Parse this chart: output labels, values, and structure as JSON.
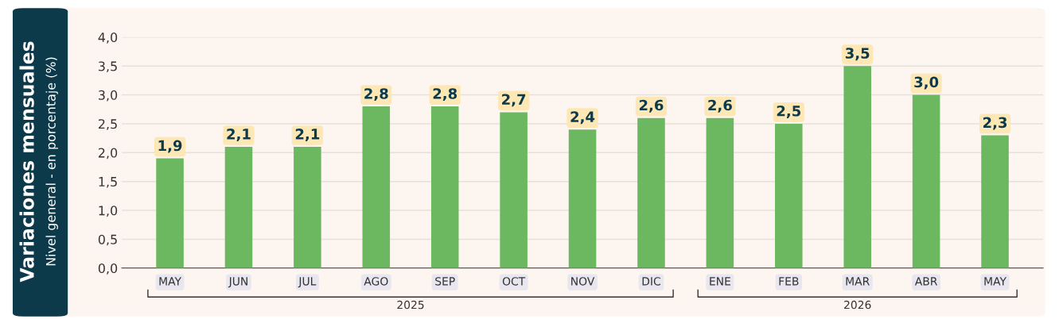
{
  "chart_data": {
    "type": "bar",
    "title": "Variaciones mensuales",
    "ylabel": "Nivel general - en porcentaje (%)",
    "categories": [
      "MAY",
      "JUN",
      "JUL",
      "AGO",
      "SEP",
      "OCT",
      "NOV",
      "DIC",
      "ENE",
      "FEB",
      "MAR",
      "ABR",
      "MAY"
    ],
    "values": [
      1.9,
      2.1,
      2.1,
      2.8,
      2.8,
      2.7,
      2.4,
      2.6,
      2.6,
      2.5,
      3.5,
      3.0,
      2.3
    ],
    "value_labels": [
      "1,9",
      "2,1",
      "2,1",
      "2,8",
      "2,8",
      "2,7",
      "2,4",
      "2,6",
      "2,6",
      "2,5",
      "3,5",
      "3,0",
      "2,3"
    ],
    "color": "#6cb860",
    "ylim": [
      0,
      4
    ],
    "yticks": [
      {
        "value": 0,
        "label": "0,0"
      },
      {
        "value": 0.5,
        "label": "0,5"
      },
      {
        "value": 1,
        "label": "1,0"
      },
      {
        "value": 1.5,
        "label": "1,5"
      },
      {
        "value": 2,
        "label": "2,0"
      },
      {
        "value": 2.5,
        "label": "2,5"
      },
      {
        "value": 3,
        "label": "3,0"
      },
      {
        "value": 3.5,
        "label": "3,5"
      },
      {
        "value": 4,
        "label": "4,0"
      }
    ],
    "grid": "y",
    "annotations": [
      "2025",
      "2026"
    ]
  }
}
